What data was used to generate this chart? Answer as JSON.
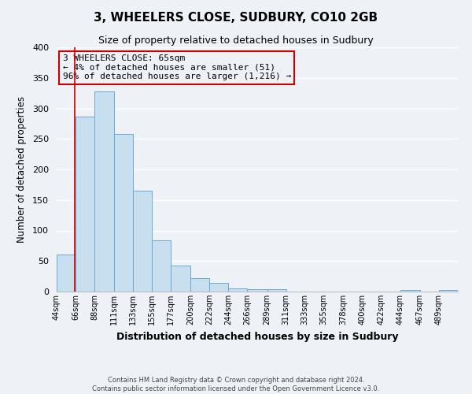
{
  "title": "3, WHEELERS CLOSE, SUDBURY, CO10 2GB",
  "subtitle": "Size of property relative to detached houses in Sudbury",
  "xlabel": "Distribution of detached houses by size in Sudbury",
  "ylabel": "Number of detached properties",
  "bin_labels": [
    "44sqm",
    "66sqm",
    "88sqm",
    "111sqm",
    "133sqm",
    "155sqm",
    "177sqm",
    "200sqm",
    "222sqm",
    "244sqm",
    "266sqm",
    "289sqm",
    "311sqm",
    "333sqm",
    "355sqm",
    "378sqm",
    "400sqm",
    "422sqm",
    "444sqm",
    "467sqm",
    "489sqm"
  ],
  "bin_edges": [
    44,
    66,
    88,
    111,
    133,
    155,
    177,
    200,
    222,
    244,
    266,
    289,
    311,
    333,
    355,
    378,
    400,
    422,
    444,
    467,
    489
  ],
  "bar_heights": [
    61,
    287,
    328,
    258,
    165,
    84,
    42,
    22,
    14,
    5,
    4,
    4,
    0,
    0,
    0,
    0,
    0,
    0,
    2,
    0,
    2
  ],
  "bar_color": "#c8dff0",
  "bar_edgecolor": "#6aaad4",
  "ylim": [
    0,
    400
  ],
  "yticks": [
    0,
    50,
    100,
    150,
    200,
    250,
    300,
    350,
    400
  ],
  "property_size": 65,
  "red_line_color": "#cc0000",
  "annotation_line1": "3 WHEELERS CLOSE: 65sqm",
  "annotation_line2": "← 4% of detached houses are smaller (51)",
  "annotation_line3": "96% of detached houses are larger (1,216) →",
  "annotation_box_edgecolor": "#cc0000",
  "footer_line1": "Contains HM Land Registry data © Crown copyright and database right 2024.",
  "footer_line2": "Contains public sector information licensed under the Open Government Licence v3.0.",
  "background_color": "#eef2f7",
  "plot_bg_color": "#eef2f7",
  "grid_color": "#ffffff",
  "title_fontsize": 11,
  "subtitle_fontsize": 9,
  "annotation_fontsize": 8
}
